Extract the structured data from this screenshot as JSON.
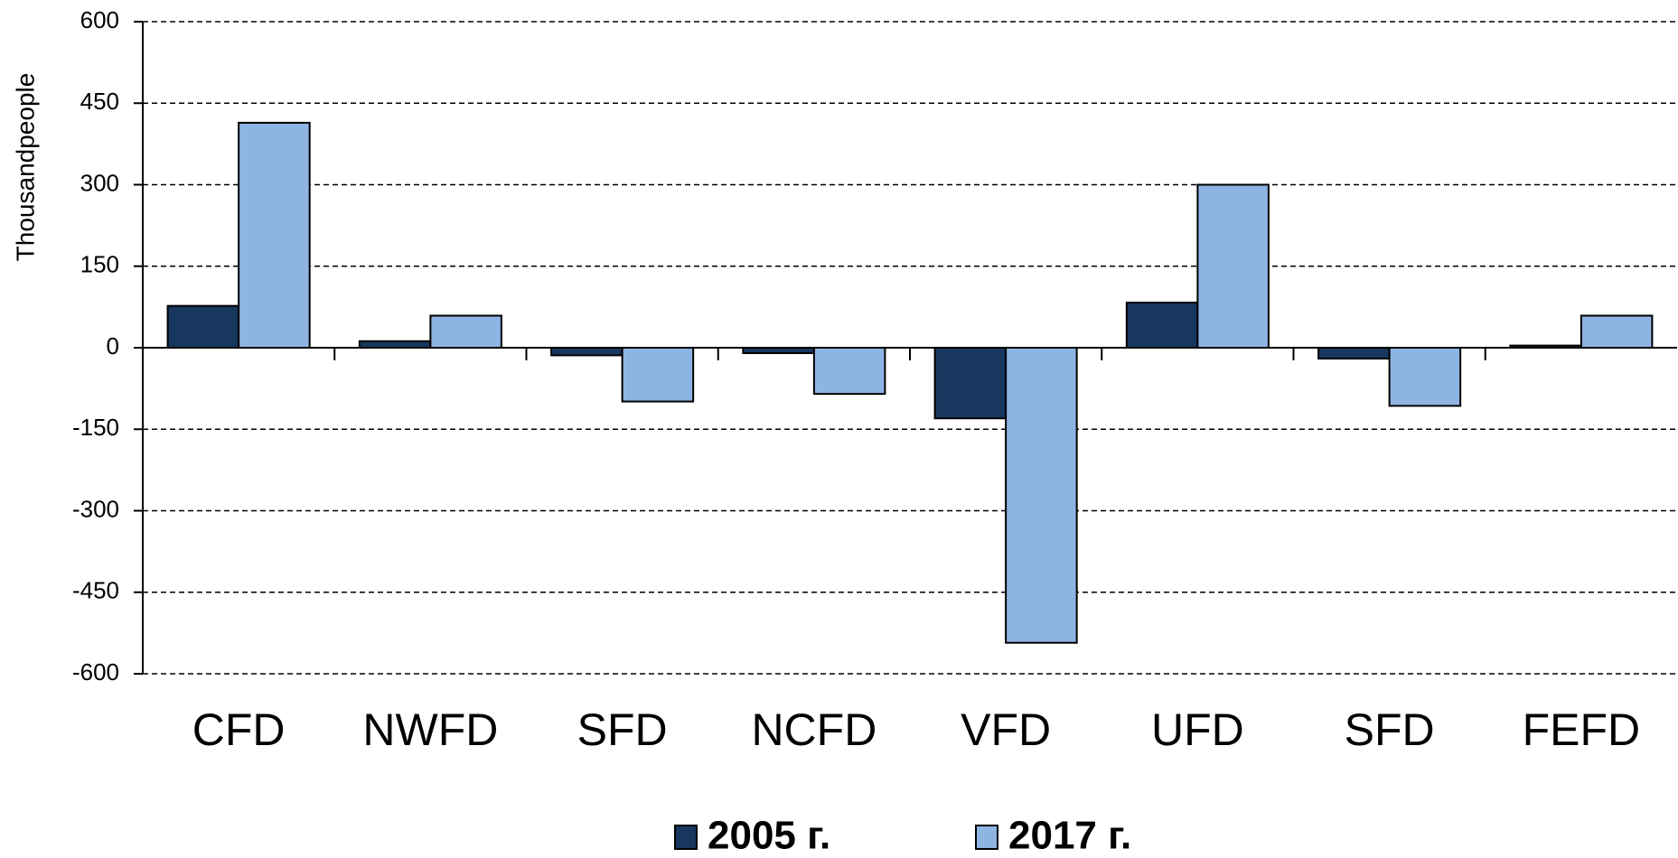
{
  "chart_data": {
    "type": "bar",
    "y_label": "Thousandpeople",
    "categories": [
      "CFD",
      "NWFD",
      "SFD",
      "NCFD",
      "VFD",
      "UFD",
      "SFD",
      "FEFD"
    ],
    "series": [
      {
        "name": "2005 г.",
        "color": "#17375e",
        "values": [
          77,
          12,
          -14,
          -10,
          -130,
          83,
          -20,
          4
        ]
      },
      {
        "name": "2017 г.",
        "color": "#8db4e2",
        "values": [
          414,
          59,
          -99,
          -85,
          -543,
          300,
          -107,
          59
        ]
      }
    ],
    "ylim": [
      -600,
      600
    ],
    "yticks": [
      -600,
      -450,
      -300,
      -150,
      0,
      150,
      300,
      450,
      600
    ],
    "grid": true,
    "legend": "bottom"
  }
}
